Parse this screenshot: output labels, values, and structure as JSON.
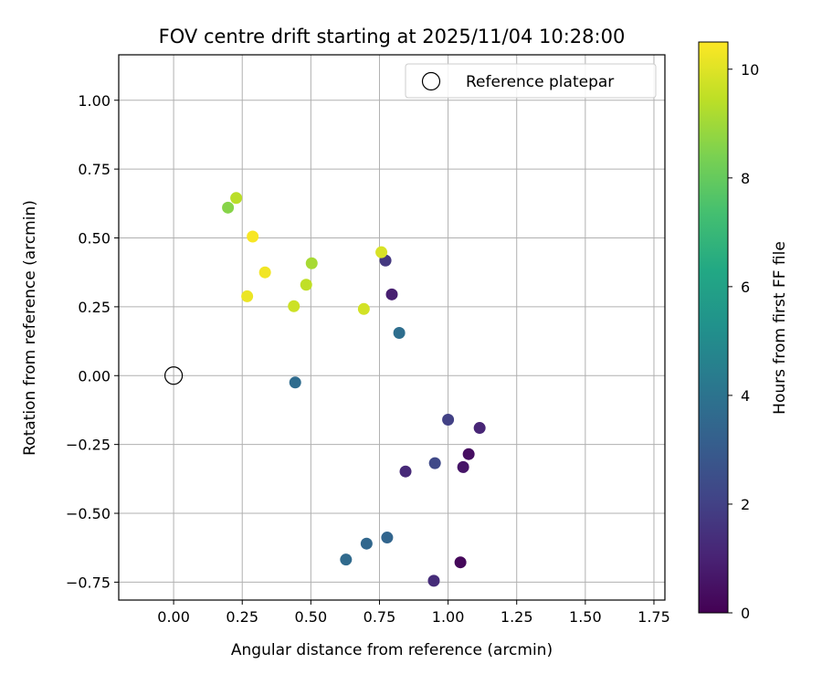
{
  "chart_data": {
    "type": "scatter",
    "title": "FOV centre drift starting at 2025/11/04 10:28:00",
    "xlabel": "Angular distance from reference (arcmin)",
    "ylabel": "Rotation from reference (arcmin)",
    "xlim": [
      -0.2,
      1.79
    ],
    "ylim": [
      -0.815,
      1.165
    ],
    "grid": true,
    "xticks": [
      0.0,
      0.25,
      0.5,
      0.75,
      1.0,
      1.25,
      1.5,
      1.75
    ],
    "xtick_labels": [
      "0.00",
      "0.25",
      "0.50",
      "0.75",
      "1.00",
      "1.25",
      "1.50",
      "1.75"
    ],
    "yticks": [
      -0.75,
      -0.5,
      -0.25,
      0.0,
      0.25,
      0.5,
      0.75,
      1.0
    ],
    "ytick_labels": [
      "−0.75",
      "−0.50",
      "−0.25",
      "0.00",
      "0.25",
      "0.50",
      "0.75",
      "1.00"
    ],
    "legend": {
      "placement": "top-right",
      "entries": [
        {
          "label": "Reference platepar",
          "marker": "open-circle"
        }
      ]
    },
    "reference_point": {
      "x": 0.0,
      "y": 0.0,
      "label": "Reference platepar"
    },
    "colorbar": {
      "label": "Hours from first FF file",
      "colormap": "viridis",
      "range": [
        0,
        10.5
      ],
      "ticks": [
        0,
        2,
        4,
        6,
        8,
        10
      ],
      "tick_labels": [
        "0",
        "2",
        "4",
        "6",
        "8",
        "10"
      ]
    },
    "points": [
      {
        "x": 1.045,
        "y": -0.678,
        "hours": 0.2
      },
      {
        "x": 1.075,
        "y": -0.285,
        "hours": 0.4
      },
      {
        "x": 1.055,
        "y": -0.332,
        "hours": 0.6
      },
      {
        "x": 0.795,
        "y": 0.295,
        "hours": 0.9
      },
      {
        "x": 1.115,
        "y": -0.19,
        "hours": 1.1
      },
      {
        "x": 0.845,
        "y": -0.348,
        "hours": 1.2
      },
      {
        "x": 0.948,
        "y": -0.745,
        "hours": 1.3
      },
      {
        "x": 0.772,
        "y": 0.418,
        "hours": 1.7
      },
      {
        "x": 1.0,
        "y": -0.16,
        "hours": 2.0
      },
      {
        "x": 0.952,
        "y": -0.318,
        "hours": 2.3
      },
      {
        "x": 0.778,
        "y": -0.588,
        "hours": 3.4
      },
      {
        "x": 0.703,
        "y": -0.61,
        "hours": 3.5
      },
      {
        "x": 0.628,
        "y": -0.668,
        "hours": 3.6
      },
      {
        "x": 0.443,
        "y": -0.025,
        "hours": 3.7
      },
      {
        "x": 0.822,
        "y": 0.155,
        "hours": 3.8
      },
      {
        "x": 0.198,
        "y": 0.61,
        "hours": 8.6
      },
      {
        "x": 0.503,
        "y": 0.408,
        "hours": 9.1
      },
      {
        "x": 0.228,
        "y": 0.645,
        "hours": 9.4
      },
      {
        "x": 0.483,
        "y": 0.33,
        "hours": 9.5
      },
      {
        "x": 0.438,
        "y": 0.252,
        "hours": 9.7
      },
      {
        "x": 0.693,
        "y": 0.242,
        "hours": 9.8
      },
      {
        "x": 0.757,
        "y": 0.448,
        "hours": 9.9
      },
      {
        "x": 0.268,
        "y": 0.288,
        "hours": 10.2
      },
      {
        "x": 0.333,
        "y": 0.375,
        "hours": 10.3
      },
      {
        "x": 0.288,
        "y": 0.505,
        "hours": 10.4
      }
    ]
  }
}
